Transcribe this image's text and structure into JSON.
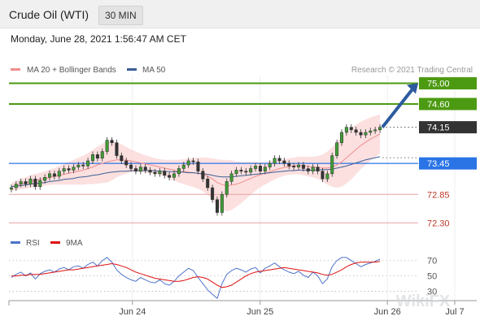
{
  "header": {
    "title": "Crude Oil (WTI)",
    "timeframe": "30 MIN",
    "datetime": "Monday, June 28, 2021 1:56:47 AM CET"
  },
  "watermark": "WikiFX",
  "chart_data": [
    {
      "type": "candlestick",
      "title": "Crude Oil (WTI)",
      "ylim": [
        72.1,
        75.15
      ],
      "credit": "Research © 2021 Trading Central",
      "legend": [
        {
          "label": "MA 20 + Bollinger Bands",
          "color": "#ef8e8e"
        },
        {
          "label": "MA 50",
          "color": "#3a5f96"
        }
      ],
      "xticks": [
        {
          "label": "Jun 24",
          "pos": 0.264
        },
        {
          "label": "Jun 25",
          "pos": 0.537
        },
        {
          "label": "Jun 26",
          "pos": 0.809
        },
        {
          "label": "Jul 7",
          "pos": 0.953
        }
      ],
      "price_levels": [
        {
          "value": 75.0,
          "label": "75.00",
          "kind": "resistance",
          "color": "#4c9a12"
        },
        {
          "value": 74.6,
          "label": "74.60",
          "kind": "resistance",
          "color": "#4c9a12"
        },
        {
          "value": 74.15,
          "label": "74.15",
          "kind": "last",
          "color": "#333333"
        },
        {
          "value": 73.45,
          "label": "73.45",
          "kind": "pivot",
          "color": "#2a74e6"
        },
        {
          "value": 72.85,
          "label": "72.85",
          "kind": "support",
          "color": "#c0392b"
        },
        {
          "value": 72.3,
          "label": "72.30",
          "kind": "support",
          "color": "#c0392b"
        }
      ],
      "target_arrow": {
        "from": 74.15,
        "to": 75.0
      },
      "close": [
        72.98,
        73.05,
        73.1,
        73.05,
        73.15,
        73.0,
        73.12,
        73.18,
        73.25,
        73.2,
        73.3,
        73.35,
        73.32,
        73.38,
        73.42,
        73.4,
        73.5,
        73.62,
        73.55,
        73.68,
        73.9,
        73.85,
        73.6,
        73.5,
        73.42,
        73.35,
        73.3,
        73.38,
        73.32,
        73.28,
        73.25,
        73.3,
        73.22,
        73.18,
        73.25,
        73.35,
        73.42,
        73.5,
        73.48,
        73.3,
        73.15,
        72.98,
        72.75,
        72.5,
        72.85,
        73.1,
        73.25,
        73.32,
        73.3,
        73.28,
        73.35,
        73.4,
        73.3,
        73.38,
        73.45,
        73.55,
        73.5,
        73.45,
        73.4,
        73.38,
        73.42,
        73.35,
        73.3,
        73.38,
        73.3,
        73.15,
        73.25,
        73.6,
        73.85,
        74.05,
        74.15,
        74.1,
        74.05,
        74.0,
        74.05,
        74.08,
        74.1,
        74.15
      ],
      "ma20": [
        73.0,
        73.02,
        73.05,
        73.07,
        73.1,
        73.12,
        73.14,
        73.16,
        73.18,
        73.2,
        73.22,
        73.24,
        73.26,
        73.28,
        73.3,
        73.32,
        73.35,
        73.38,
        73.42,
        73.45,
        73.48,
        73.5,
        73.52,
        73.52,
        73.51,
        73.5,
        73.48,
        73.46,
        73.44,
        73.42,
        73.4,
        73.38,
        73.36,
        73.34,
        73.32,
        73.3,
        73.29,
        73.28,
        73.27,
        73.26,
        73.24,
        73.2,
        73.15,
        73.08,
        73.04,
        73.02,
        73.03,
        73.05,
        73.08,
        73.12,
        73.16,
        73.2,
        73.23,
        73.26,
        73.29,
        73.32,
        73.35,
        73.37,
        73.39,
        73.4,
        73.41,
        73.4,
        73.39,
        73.38,
        73.37,
        73.36,
        73.36,
        73.38,
        73.42,
        73.48,
        73.56,
        73.64,
        73.72,
        73.8,
        73.86,
        73.92,
        73.97,
        74.02
      ],
      "ma50": [
        73.0,
        73.01,
        73.02,
        73.03,
        73.05,
        73.06,
        73.07,
        73.08,
        73.1,
        73.11,
        73.12,
        73.14,
        73.15,
        73.16,
        73.18,
        73.19,
        73.2,
        73.22,
        73.23,
        73.25,
        73.27,
        73.28,
        73.29,
        73.3,
        73.3,
        73.31,
        73.31,
        73.31,
        73.31,
        73.31,
        73.31,
        73.3,
        73.3,
        73.29,
        73.29,
        73.28,
        73.28,
        73.27,
        73.27,
        73.26,
        73.25,
        73.24,
        73.22,
        73.2,
        73.19,
        73.19,
        73.19,
        73.2,
        73.21,
        73.22,
        73.23,
        73.24,
        73.25,
        73.26,
        73.27,
        73.28,
        73.29,
        73.3,
        73.31,
        73.31,
        73.32,
        73.32,
        73.32,
        73.32,
        73.32,
        73.33,
        73.33,
        73.34,
        73.36,
        73.38,
        73.4,
        73.43,
        73.46,
        73.49,
        73.52,
        73.54,
        73.56,
        73.58
      ],
      "band_width": [
        0.08,
        0.09,
        0.1,
        0.11,
        0.12,
        0.13,
        0.13,
        0.14,
        0.15,
        0.16,
        0.18,
        0.2,
        0.22,
        0.24,
        0.26,
        0.28,
        0.3,
        0.33,
        0.36,
        0.38,
        0.4,
        0.38,
        0.34,
        0.3,
        0.26,
        0.22,
        0.2,
        0.18,
        0.17,
        0.16,
        0.15,
        0.15,
        0.16,
        0.18,
        0.2,
        0.22,
        0.24,
        0.26,
        0.28,
        0.3,
        0.33,
        0.36,
        0.4,
        0.45,
        0.48,
        0.5,
        0.48,
        0.44,
        0.4,
        0.36,
        0.32,
        0.28,
        0.24,
        0.22,
        0.2,
        0.18,
        0.17,
        0.16,
        0.16,
        0.16,
        0.17,
        0.18,
        0.19,
        0.2,
        0.22,
        0.26,
        0.32,
        0.38,
        0.44,
        0.48,
        0.5,
        0.5,
        0.48,
        0.46,
        0.44,
        0.42,
        0.4,
        0.38
      ]
    },
    {
      "type": "line",
      "title": "RSI",
      "ylim": [
        20,
        75
      ],
      "yticks": [
        70,
        50,
        30
      ],
      "series": [
        {
          "name": "RSI",
          "color": "#4d73c9",
          "values": [
            48,
            52,
            55,
            50,
            54,
            46,
            53,
            56,
            58,
            55,
            59,
            61,
            58,
            62,
            63,
            60,
            65,
            68,
            63,
            70,
            74,
            68,
            58,
            52,
            48,
            45,
            43,
            48,
            45,
            42,
            41,
            45,
            40,
            38,
            43,
            50,
            55,
            60,
            57,
            48,
            40,
            32,
            26,
            21,
            40,
            52,
            57,
            60,
            58,
            55,
            59,
            61,
            54,
            60,
            63,
            67,
            62,
            58,
            55,
            53,
            56,
            51,
            48,
            55,
            50,
            40,
            46,
            62,
            70,
            74,
            74,
            70,
            66,
            62,
            65,
            67,
            69,
            72
          ]
        },
        {
          "name": "9MA",
          "color": "#e01010",
          "values": [
            50,
            50,
            51,
            51,
            52,
            52,
            52,
            53,
            54,
            55,
            56,
            57,
            58,
            58,
            59,
            60,
            61,
            62,
            63,
            64,
            65,
            66,
            65,
            63,
            61,
            58,
            55,
            53,
            51,
            49,
            47,
            46,
            45,
            44,
            43,
            43,
            44,
            46,
            48,
            49,
            48,
            46,
            42,
            38,
            35,
            36,
            38,
            42,
            46,
            50,
            53,
            55,
            56,
            57,
            58,
            59,
            60,
            61,
            60,
            59,
            58,
            57,
            56,
            55,
            54,
            52,
            51,
            52,
            55,
            58,
            62,
            65,
            67,
            68,
            68,
            68,
            68,
            69
          ]
        }
      ]
    }
  ]
}
